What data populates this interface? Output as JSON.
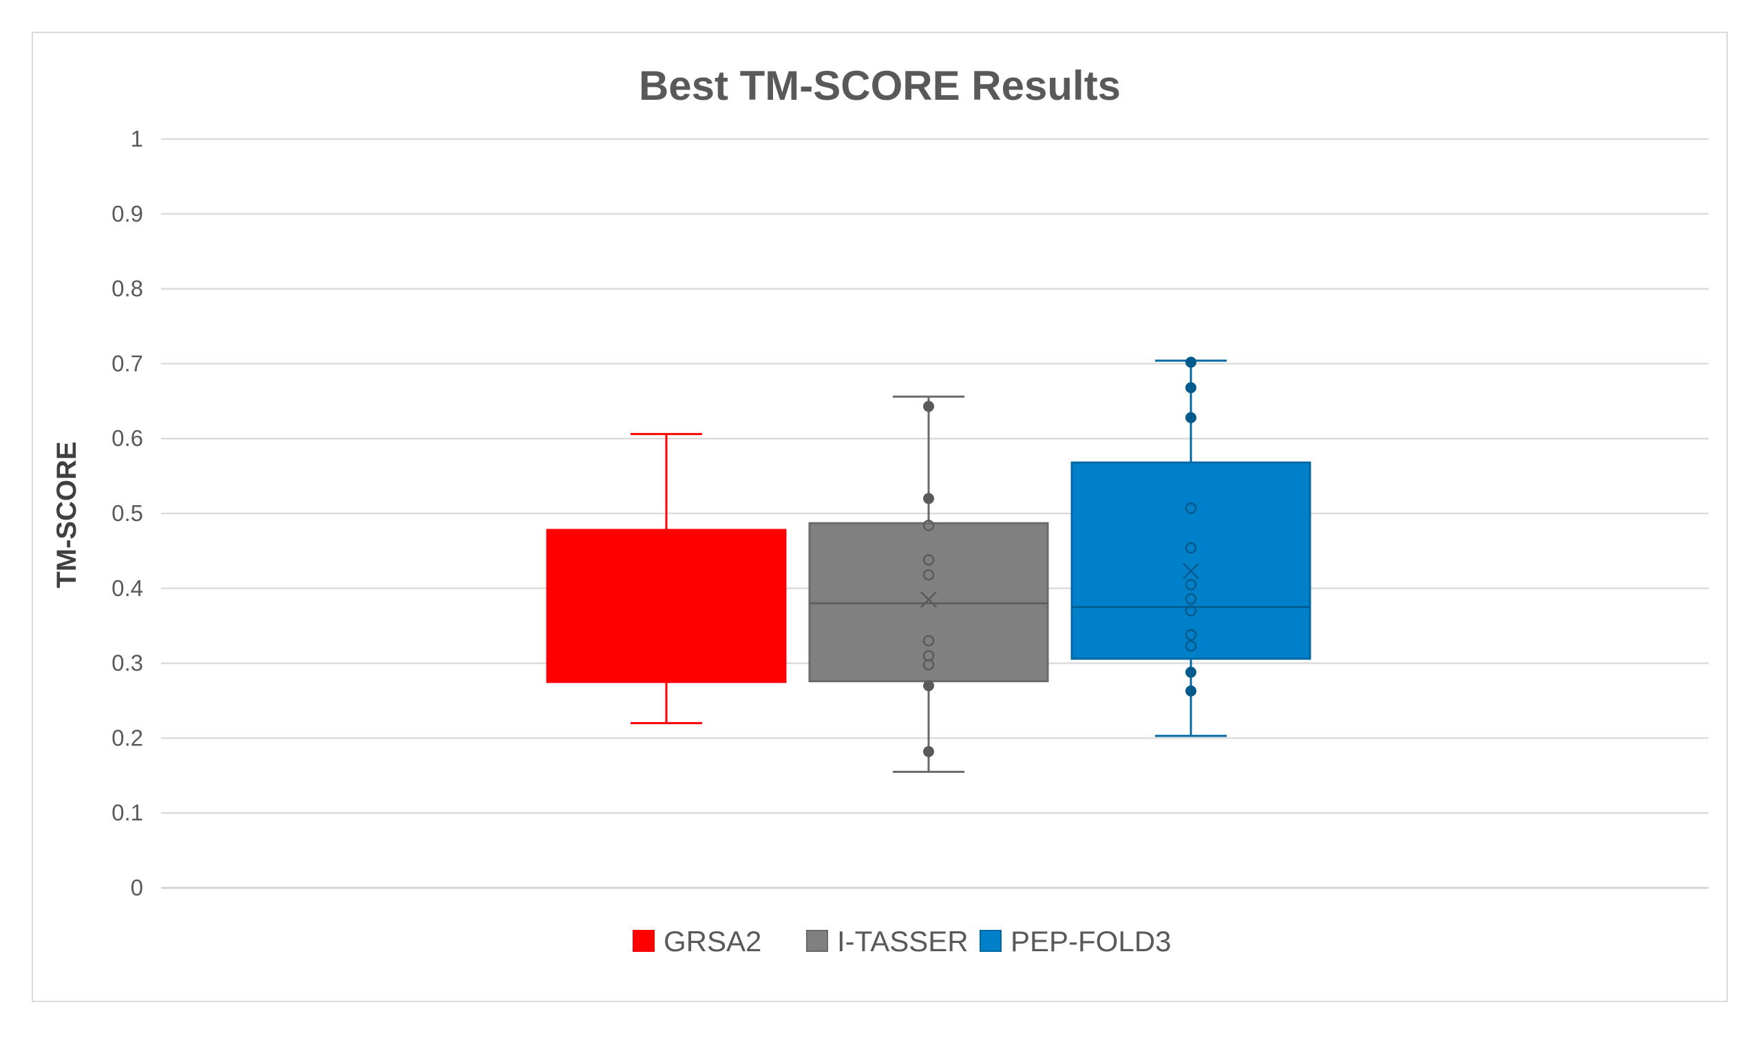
{
  "chart_data": {
    "type": "box",
    "title": "Best TM-SCORE Results",
    "xlabel": "",
    "ylabel": "TM-SCORE",
    "ylim": [
      0,
      1
    ],
    "yticks": [
      0,
      0.1,
      0.2,
      0.3,
      0.4,
      0.5,
      0.6,
      0.7,
      0.8,
      0.9,
      1
    ],
    "ytick_labels": [
      "0",
      "0.1",
      "0.2",
      "0.3",
      "0.4",
      "0.5",
      "0.6",
      "0.7",
      "0.8",
      "0.9",
      "1"
    ],
    "grid": true,
    "legend_position": "bottom",
    "series": [
      {
        "name": "GRSA2",
        "color": "#ff0000",
        "min": 0.22,
        "q1": 0.275,
        "median": null,
        "mean": null,
        "q3": 0.478,
        "max": 0.606,
        "points": []
      },
      {
        "name": "I-TASSER",
        "color": "#808080",
        "min": 0.155,
        "q1": 0.276,
        "median": 0.38,
        "mean": 0.385,
        "q3": 0.487,
        "max": 0.656,
        "points": [
          0.643,
          0.52,
          0.484,
          0.438,
          0.418,
          0.33,
          0.31,
          0.298,
          0.27,
          0.182
        ]
      },
      {
        "name": "PEP-FOLD3",
        "color": "#0080c8",
        "min": 0.203,
        "q1": 0.306,
        "median": 0.375,
        "mean": 0.423,
        "q3": 0.568,
        "max": 0.704,
        "points": [
          0.702,
          0.668,
          0.628,
          0.507,
          0.454,
          0.405,
          0.386,
          0.37,
          0.338,
          0.323,
          0.288,
          0.263
        ]
      }
    ]
  }
}
